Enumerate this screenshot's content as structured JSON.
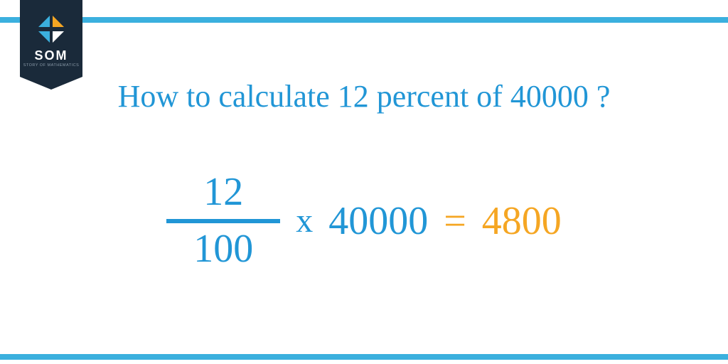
{
  "badge": {
    "title": "SOM",
    "subtitle": "STORY OF MATHEMATICS"
  },
  "heading": "How to calculate 12 percent of 40000 ?",
  "equation": {
    "numerator": "12",
    "denominator": "100",
    "multiply_symbol": "x",
    "multiplicand": "40000",
    "equals_symbol": "=",
    "result": "4800"
  },
  "colors": {
    "accent_blue": "#3bb0de",
    "text_blue": "#2196d6",
    "orange": "#f5a623",
    "badge_bg": "#1a2a3a",
    "white": "#ffffff"
  },
  "typography": {
    "heading_fontsize": 44,
    "equation_fontsize": 56,
    "font_family": "Times New Roman"
  }
}
